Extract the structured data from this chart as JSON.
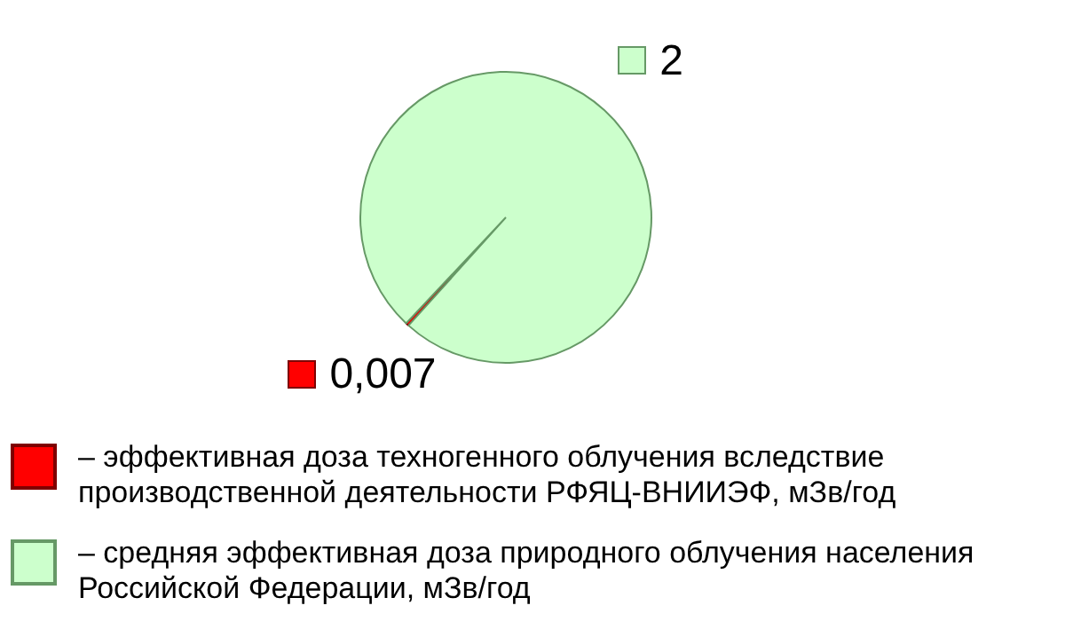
{
  "chart_data": {
    "type": "pie",
    "categories": [
      "– эффективная доза техногенного облучения вследствие производственной деятельности РФЯЦ-ВНИИЭФ, мЗв/год",
      "– средняя эффективная доза природного облучения населения Российской Федерации, мЗв/год"
    ],
    "values": [
      0.007,
      2
    ],
    "colors": [
      "#ff0000",
      "#ccffcc"
    ],
    "value_labels": [
      "0,007",
      "2"
    ],
    "legend": "bottom"
  }
}
